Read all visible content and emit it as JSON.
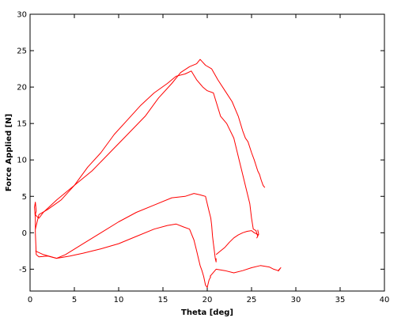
{
  "chart_data": {
    "type": "line",
    "title": "",
    "xlabel": "Theta [deg]",
    "ylabel": "Force Applied [N]",
    "xlim": [
      0,
      40
    ],
    "ylim": [
      -8,
      30
    ],
    "xticks": [
      0,
      5,
      10,
      15,
      20,
      25,
      30,
      35,
      40
    ],
    "yticks": [
      -5,
      0,
      5,
      10,
      15,
      20,
      25,
      30
    ],
    "grid": false,
    "legend": "none",
    "line_color": "#ff0000",
    "series": [
      {
        "x": [
          0.6,
          0.6,
          0.5,
          0.6,
          0.7,
          0.6,
          0.8,
          1.0,
          1.5,
          3.0,
          5.0,
          7.0,
          9.0,
          11.0,
          13.0,
          14.5,
          16.0,
          17.0,
          18.0,
          18.8,
          19.2,
          19.8,
          20.5,
          21.2,
          22.0,
          22.8,
          23.5,
          24.0,
          24.3,
          24.6,
          25.0,
          25.3,
          25.7,
          25.9,
          26.1,
          26.3,
          26.5
        ],
        "y": [
          0.0,
          2.0,
          3.5,
          4.2,
          3.0,
          2.5,
          2.2,
          2.0,
          2.8,
          4.5,
          6.5,
          8.5,
          11.0,
          13.5,
          16.0,
          18.5,
          20.5,
          22.0,
          22.8,
          23.2,
          23.8,
          23.0,
          22.5,
          21.0,
          19.5,
          18.0,
          16.0,
          14.0,
          13.0,
          12.5,
          11.0,
          10.0,
          8.5,
          8.0,
          7.2,
          6.5,
          6.2
        ]
      },
      {
        "x": [
          0.6,
          1.0,
          2.0,
          3.5,
          5.0,
          6.5,
          8.0,
          9.5,
          11.0,
          12.5,
          14.0,
          15.5,
          16.5,
          17.5,
          18.2,
          18.8,
          19.5,
          20.0,
          20.7,
          21.5,
          22.2,
          23.0,
          23.6,
          24.0,
          24.4,
          24.8,
          25.0,
          25.2,
          25.5,
          25.7,
          25.6,
          25.8,
          25.7
        ],
        "y": [
          0.5,
          2.5,
          3.2,
          4.5,
          6.5,
          9.0,
          11.0,
          13.5,
          15.5,
          17.5,
          19.2,
          20.5,
          21.5,
          21.8,
          22.2,
          21.0,
          20.0,
          19.5,
          19.2,
          16.0,
          15.0,
          13.0,
          10.0,
          8.0,
          6.0,
          4.0,
          2.0,
          0.5,
          0.3,
          -0.5,
          -0.7,
          -0.2,
          0.4
        ]
      },
      {
        "x": [
          0.6,
          0.7,
          1.0,
          2.0,
          3.0,
          4.0,
          6.0,
          8.0,
          10.0,
          12.0,
          14.0,
          16.0,
          17.5,
          18.5,
          19.2,
          19.8,
          20.2,
          20.4,
          20.5,
          20.6,
          20.7,
          20.8,
          20.9,
          21.0,
          21.0
        ],
        "y": [
          0.0,
          -3.0,
          -3.3,
          -3.2,
          -3.5,
          -3.0,
          -1.5,
          0.0,
          1.5,
          2.8,
          3.8,
          4.8,
          5.0,
          5.4,
          5.2,
          5.0,
          3.0,
          2.0,
          1.0,
          -0.5,
          -1.5,
          -2.5,
          -3.5,
          -4.0,
          -3.5
        ]
      },
      {
        "x": [
          0.6,
          1.5,
          3.0,
          4.5,
          6.0,
          8.0,
          10.0,
          12.0,
          14.0,
          15.5,
          16.5,
          17.3,
          18.0,
          18.5,
          18.8,
          19.0,
          19.2,
          19.4,
          19.6,
          19.8,
          20.0,
          20.2,
          20.4
        ],
        "y": [
          -2.5,
          -3.0,
          -3.5,
          -3.2,
          -2.8,
          -2.2,
          -1.5,
          -0.5,
          0.5,
          1.0,
          1.2,
          0.8,
          0.5,
          -1.0,
          -2.5,
          -3.5,
          -4.5,
          -5.2,
          -6.0,
          -7.2,
          -7.5,
          -6.5,
          -6.0
        ]
      },
      {
        "x": [
          21.0,
          21.5,
          22.0,
          22.5,
          23.0,
          23.5,
          24.0,
          24.5,
          25.0,
          25.3,
          25.8
        ],
        "y": [
          -3.0,
          -2.5,
          -2.0,
          -1.3,
          -0.7,
          -0.3,
          0.0,
          0.2,
          0.3,
          0.0,
          -0.3
        ]
      },
      {
        "x": [
          20.3,
          21.0,
          22.0,
          23.0,
          24.0,
          25.0,
          26.0,
          27.0,
          27.5,
          28.0,
          28.3,
          28.0
        ],
        "y": [
          -6.0,
          -5.0,
          -5.2,
          -5.5,
          -5.2,
          -4.8,
          -4.5,
          -4.7,
          -5.0,
          -5.2,
          -4.8,
          -5.3
        ]
      }
    ]
  }
}
